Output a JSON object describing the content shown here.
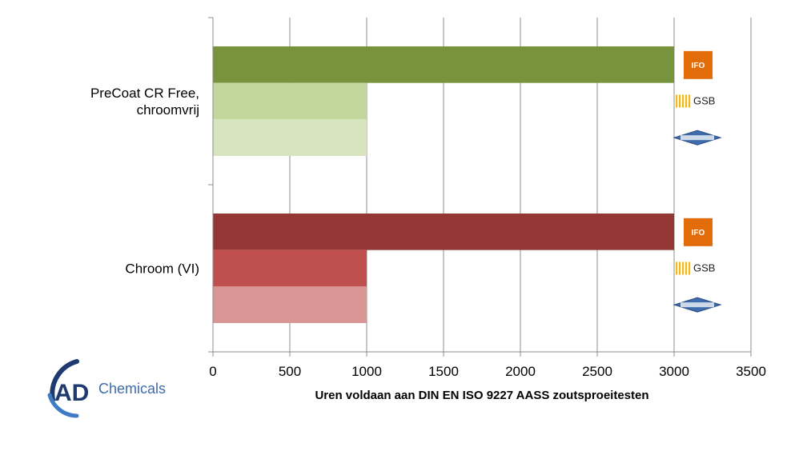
{
  "chart_data": {
    "type": "bar",
    "orientation": "horizontal",
    "categories": [
      "PreCoat CR Free,\nchroomvrij",
      "Chroom (VI)"
    ],
    "xlabel": "Uren voldaan aan DIN EN ISO 9227 AASS zoutsproeitesten",
    "xlim": [
      0,
      3500
    ],
    "xticks": [
      0,
      500,
      1000,
      1500,
      2000,
      2500,
      3000,
      3500
    ],
    "grid": "vertical",
    "legend": "none",
    "groups": [
      {
        "category": "PreCoat CR Free,\nchroomvrij",
        "bars": [
          {
            "value": 3000,
            "color": "#77933c",
            "badge": "IFO"
          },
          {
            "value": 1000,
            "color": "#c3d69b",
            "badge": "GSB"
          },
          {
            "value": 1000,
            "color": "#d7e4bd",
            "badge": "Qualicoat"
          }
        ]
      },
      {
        "category": "Chroom (VI)",
        "bars": [
          {
            "value": 3000,
            "color": "#953735",
            "badge": "IFO"
          },
          {
            "value": 1000,
            "color": "#c0504d",
            "badge": "GSB"
          },
          {
            "value": 1000,
            "color": "#d99694",
            "badge": "Qualicoat"
          }
        ]
      }
    ]
  },
  "badges": {
    "ifo": {
      "text": "IFO",
      "color": "#e36c0a"
    },
    "gsb": {
      "text": "GSB",
      "color": "#f2b81c"
    },
    "qualicoat": {
      "color": "#3f6cab"
    }
  },
  "logo": {
    "ad": "AD",
    "chemicals": "Chemicals",
    "color_dark": "#1f3a6e",
    "color_light": "#3f7bc4"
  }
}
